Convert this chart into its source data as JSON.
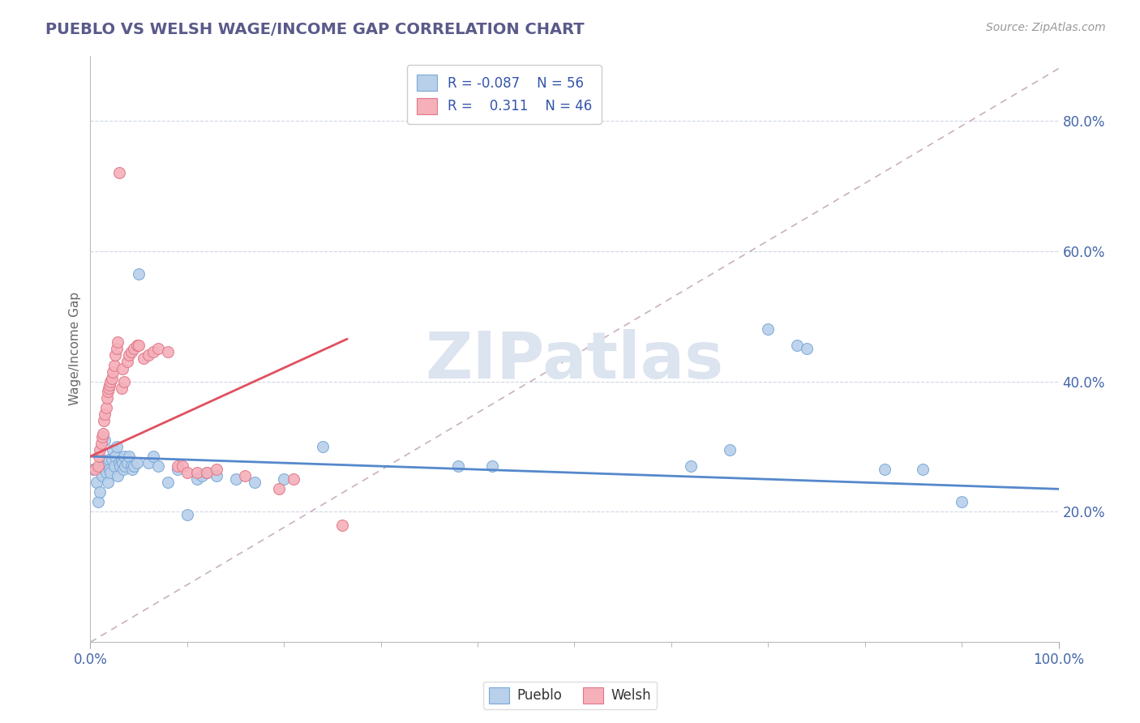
{
  "title": "PUEBLO VS WELSH WAGE/INCOME GAP CORRELATION CHART",
  "source": "Source: ZipAtlas.com",
  "ylabel": "Wage/Income Gap",
  "pueblo_R": "-0.087",
  "pueblo_N": "56",
  "welsh_R": "0.311",
  "welsh_N": "46",
  "pueblo_color": "#b8d0ea",
  "welsh_color": "#f5b0ba",
  "pueblo_edge_color": "#7aa8d8",
  "welsh_edge_color": "#e07888",
  "pueblo_line_color": "#5588cc",
  "welsh_line_color": "#e05060",
  "ref_line_color": "#c8b0c0",
  "background_color": "#ffffff",
  "title_color": "#5a5a8a",
  "watermark_color": "#dce4ef",
  "pueblo_scatter": [
    [
      0.003,
      0.265
    ],
    [
      0.006,
      0.245
    ],
    [
      0.008,
      0.215
    ],
    [
      0.01,
      0.23
    ],
    [
      0.012,
      0.255
    ],
    [
      0.013,
      0.27
    ],
    [
      0.015,
      0.31
    ],
    [
      0.016,
      0.26
    ],
    [
      0.018,
      0.245
    ],
    [
      0.019,
      0.28
    ],
    [
      0.02,
      0.265
    ],
    [
      0.021,
      0.26
    ],
    [
      0.022,
      0.28
    ],
    [
      0.023,
      0.295
    ],
    [
      0.025,
      0.27
    ],
    [
      0.026,
      0.285
    ],
    [
      0.027,
      0.3
    ],
    [
      0.028,
      0.255
    ],
    [
      0.03,
      0.275
    ],
    [
      0.031,
      0.27
    ],
    [
      0.032,
      0.28
    ],
    [
      0.033,
      0.275
    ],
    [
      0.034,
      0.265
    ],
    [
      0.035,
      0.285
    ],
    [
      0.036,
      0.27
    ],
    [
      0.038,
      0.275
    ],
    [
      0.04,
      0.285
    ],
    [
      0.042,
      0.27
    ],
    [
      0.043,
      0.265
    ],
    [
      0.045,
      0.27
    ],
    [
      0.048,
      0.275
    ],
    [
      0.05,
      0.565
    ],
    [
      0.06,
      0.275
    ],
    [
      0.065,
      0.285
    ],
    [
      0.07,
      0.27
    ],
    [
      0.08,
      0.245
    ],
    [
      0.09,
      0.265
    ],
    [
      0.1,
      0.195
    ],
    [
      0.11,
      0.25
    ],
    [
      0.115,
      0.255
    ],
    [
      0.12,
      0.26
    ],
    [
      0.13,
      0.255
    ],
    [
      0.15,
      0.25
    ],
    [
      0.17,
      0.245
    ],
    [
      0.2,
      0.25
    ],
    [
      0.24,
      0.3
    ],
    [
      0.38,
      0.27
    ],
    [
      0.415,
      0.27
    ],
    [
      0.62,
      0.27
    ],
    [
      0.66,
      0.295
    ],
    [
      0.7,
      0.48
    ],
    [
      0.73,
      0.455
    ],
    [
      0.74,
      0.45
    ],
    [
      0.82,
      0.265
    ],
    [
      0.86,
      0.265
    ],
    [
      0.9,
      0.215
    ]
  ],
  "welsh_scatter": [
    [
      0.005,
      0.265
    ],
    [
      0.008,
      0.27
    ],
    [
      0.009,
      0.285
    ],
    [
      0.01,
      0.295
    ],
    [
      0.011,
      0.305
    ],
    [
      0.012,
      0.315
    ],
    [
      0.013,
      0.32
    ],
    [
      0.014,
      0.34
    ],
    [
      0.015,
      0.35
    ],
    [
      0.016,
      0.36
    ],
    [
      0.017,
      0.375
    ],
    [
      0.018,
      0.385
    ],
    [
      0.019,
      0.39
    ],
    [
      0.02,
      0.395
    ],
    [
      0.021,
      0.4
    ],
    [
      0.022,
      0.405
    ],
    [
      0.023,
      0.415
    ],
    [
      0.025,
      0.425
    ],
    [
      0.026,
      0.44
    ],
    [
      0.027,
      0.45
    ],
    [
      0.028,
      0.46
    ],
    [
      0.03,
      0.72
    ],
    [
      0.032,
      0.39
    ],
    [
      0.033,
      0.42
    ],
    [
      0.035,
      0.4
    ],
    [
      0.038,
      0.43
    ],
    [
      0.04,
      0.44
    ],
    [
      0.042,
      0.445
    ],
    [
      0.045,
      0.45
    ],
    [
      0.048,
      0.455
    ],
    [
      0.05,
      0.455
    ],
    [
      0.055,
      0.435
    ],
    [
      0.06,
      0.44
    ],
    [
      0.065,
      0.445
    ],
    [
      0.07,
      0.45
    ],
    [
      0.08,
      0.445
    ],
    [
      0.09,
      0.27
    ],
    [
      0.095,
      0.27
    ],
    [
      0.1,
      0.26
    ],
    [
      0.11,
      0.26
    ],
    [
      0.12,
      0.26
    ],
    [
      0.13,
      0.265
    ],
    [
      0.16,
      0.255
    ],
    [
      0.195,
      0.235
    ],
    [
      0.21,
      0.25
    ],
    [
      0.26,
      0.18
    ]
  ],
  "xlim": [
    0.0,
    1.0
  ],
  "ylim": [
    0.0,
    0.9
  ],
  "yticks": [
    0.0,
    0.2,
    0.4,
    0.6,
    0.8
  ],
  "ytick_labels": [
    "",
    "20.0%",
    "40.0%",
    "60.0%",
    "80.0%"
  ]
}
